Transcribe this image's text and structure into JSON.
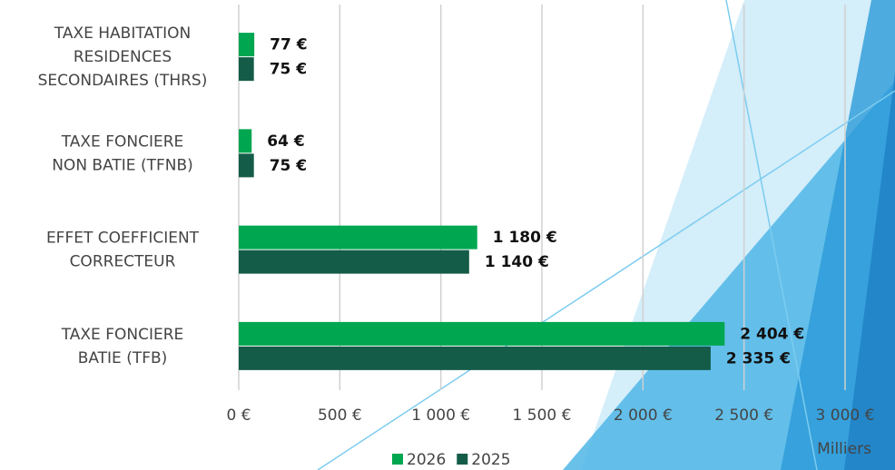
{
  "chart_data": {
    "type": "hbar",
    "categories": [
      "TAXE HABITATION\nRESIDENCES\nSECONDAIRES (THRS)",
      "TAXE FONCIERE\nNON BATIE (TFNB)",
      "EFFET COEFFICIENT\nCORRECTEUR",
      "TAXE FONCIERE\nBATIE (TFB)"
    ],
    "series": [
      {
        "name": "2026",
        "color": "#00a650",
        "values": [
          77,
          64,
          1180,
          2404
        ],
        "value_labels": [
          "77 €",
          "64 €",
          "1 180 €",
          "2 404 €"
        ]
      },
      {
        "name": "2025",
        "color": "#145c48",
        "values": [
          75,
          75,
          1140,
          2335
        ],
        "value_labels": [
          "75 €",
          "75 €",
          "1 140 €",
          "2 335 €"
        ]
      }
    ],
    "xlim": [
      0,
      3000
    ],
    "xticks": [
      {
        "value": 0,
        "label": "0 €"
      },
      {
        "value": 500,
        "label": "500 €"
      },
      {
        "value": 1000,
        "label": "1 000 €"
      },
      {
        "value": 1500,
        "label": "1 500 €"
      },
      {
        "value": 2000,
        "label": "2 000 €"
      },
      {
        "value": 2500,
        "label": "2 500 €"
      },
      {
        "value": 3000,
        "label": "3 000 €"
      }
    ],
    "x_unit_label": "Milliers",
    "grid": true,
    "legend": "bottom"
  }
}
